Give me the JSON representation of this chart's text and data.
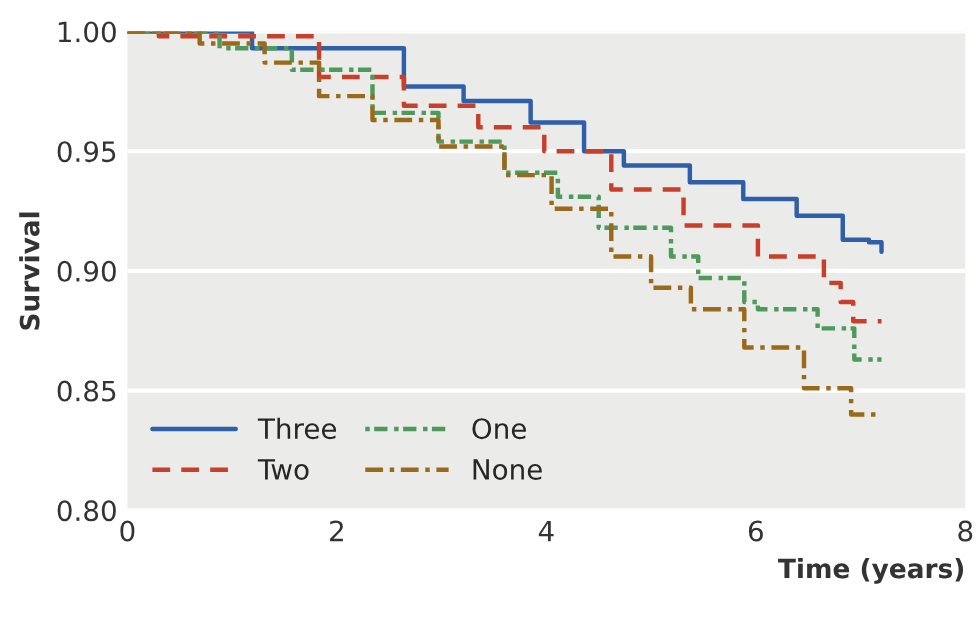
{
  "chart_data": {
    "type": "step",
    "xlabel": "Time (years)",
    "ylabel": "Survival",
    "xlim": [
      0,
      8
    ],
    "ylim": [
      0.8,
      1.0
    ],
    "xticks": [
      0,
      2,
      4,
      6,
      8
    ],
    "yticks": [
      {
        "value": 0.8,
        "label": "0.80"
      },
      {
        "value": 0.85,
        "label": "0.85"
      },
      {
        "value": 0.9,
        "label": "0.90"
      },
      {
        "value": 0.95,
        "label": "0.95"
      },
      {
        "value": 1.0,
        "label": "1.00"
      }
    ],
    "grid": "y",
    "legend": "bottom left",
    "series": [
      {
        "name": "Three",
        "color": "#2f5fa8",
        "line_style": "solid",
        "x": [
          0,
          1.19,
          2.64,
          3.21,
          3.85,
          4.36,
          4.74,
          5.37,
          5.88,
          6.39,
          6.83,
          7.08,
          7.2
        ],
        "values": [
          1.0,
          0.993,
          0.977,
          0.971,
          0.962,
          0.95,
          0.944,
          0.937,
          0.93,
          0.923,
          0.913,
          0.912,
          0.908
        ]
      },
      {
        "name": "Two",
        "color": "#c8402a",
        "line_style": "dashed",
        "x": [
          0,
          0.3,
          1.83,
          2.64,
          3.35,
          3.98,
          4.62,
          5.31,
          6.02,
          6.65,
          6.81,
          6.93,
          7.2
        ],
        "values": [
          1.0,
          0.998,
          0.981,
          0.969,
          0.96,
          0.95,
          0.934,
          0.919,
          0.906,
          0.895,
          0.887,
          0.879,
          0.879
        ]
      },
      {
        "name": "One",
        "color": "#4e9a5a",
        "line_style": "dotted",
        "x": [
          0,
          0.88,
          1.57,
          2.34,
          2.97,
          3.6,
          4.11,
          4.5,
          5.19,
          5.45,
          5.89,
          6.02,
          6.59,
          6.94,
          7.2
        ],
        "values": [
          1.0,
          0.993,
          0.984,
          0.966,
          0.954,
          0.941,
          0.931,
          0.918,
          0.906,
          0.897,
          0.887,
          0.884,
          0.876,
          0.863,
          0.863
        ]
      },
      {
        "name": "None",
        "color": "#9a6a1a",
        "line_style": "dashdot",
        "x": [
          0,
          0.69,
          1.31,
          1.83,
          2.34,
          2.97,
          3.6,
          4.05,
          4.62,
          5.0,
          5.38,
          5.89,
          6.46,
          6.91,
          7.2
        ],
        "values": [
          1.0,
          0.995,
          0.987,
          0.973,
          0.963,
          0.952,
          0.94,
          0.926,
          0.906,
          0.893,
          0.884,
          0.868,
          0.851,
          0.84,
          0.84
        ]
      }
    ]
  }
}
